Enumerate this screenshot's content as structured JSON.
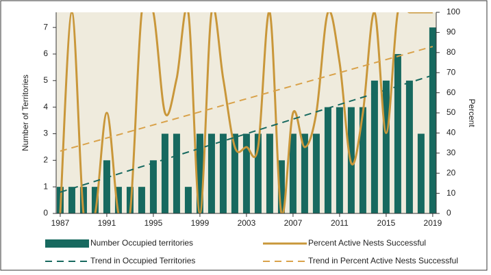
{
  "chart_data": {
    "type": "combo",
    "ylabel": "Number of Territories",
    "y2label": "Percent",
    "x": [
      1987,
      1988,
      1989,
      1990,
      1991,
      1992,
      1993,
      1994,
      1995,
      1996,
      1997,
      1998,
      1999,
      2000,
      2001,
      2002,
      2003,
      2004,
      2005,
      2006,
      2007,
      2008,
      2009,
      2010,
      2011,
      2012,
      2013,
      2014,
      2015,
      2016,
      2017,
      2018,
      2019
    ],
    "xlim": [
      1986.65,
      2019.3
    ],
    "xticks": [
      1987,
      1991,
      1995,
      1999,
      2003,
      2007,
      2011,
      2015,
      2019
    ],
    "ylim": [
      0,
      7.57
    ],
    "yticks": [
      0,
      1,
      2,
      3,
      4,
      5,
      6,
      7
    ],
    "y2lim": [
      0,
      100
    ],
    "y2ticks": [
      0,
      10,
      20,
      30,
      40,
      50,
      60,
      70,
      80,
      90,
      100
    ],
    "series": [
      {
        "name": "Number Occupied territories",
        "type": "bar",
        "color": "#17695f",
        "values": [
          1,
          1,
          1,
          1,
          2,
          1,
          1,
          1,
          2,
          3,
          3,
          1,
          3,
          3,
          3,
          3,
          3,
          3,
          3,
          2,
          3,
          3,
          3,
          4,
          4,
          4,
          4,
          5,
          5,
          6,
          5,
          3,
          7
        ]
      },
      {
        "name": "Percent Active Nests Successful",
        "type": "line",
        "axis": "y2",
        "color": "#c9973a",
        "values": [
          0,
          100,
          0,
          0,
          50,
          0,
          0,
          100,
          100,
          50,
          67,
          100,
          0,
          100,
          67,
          33,
          33,
          33,
          100,
          0,
          50,
          33,
          50,
          100,
          75,
          25,
          50,
          100,
          40,
          100,
          100,
          100,
          100
        ]
      },
      {
        "name": "Trend in Occupied Territories",
        "type": "trend",
        "color": "#17695f",
        "x": [
          1987,
          2019
        ],
        "values": [
          0.8,
          5.2
        ]
      },
      {
        "name": "Trend in Percent Active Nests Successful",
        "type": "trend",
        "axis": "y2",
        "color": "#d9a24a",
        "x": [
          1987,
          2019
        ],
        "values": [
          31,
          83
        ]
      }
    ]
  }
}
